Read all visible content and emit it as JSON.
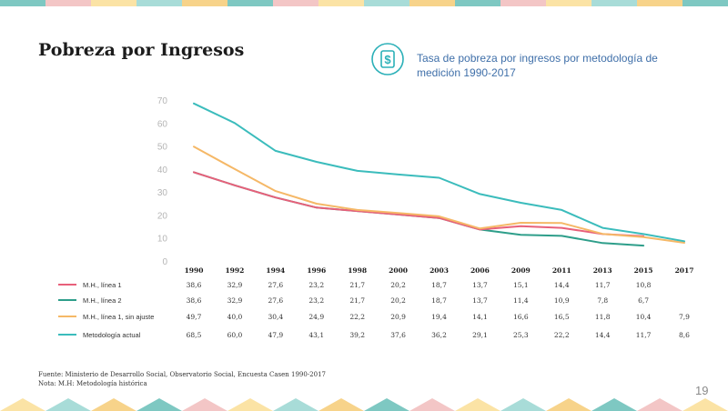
{
  "slide": {
    "title": "Pobreza por Ingresos",
    "page_number": "19",
    "source_line1": "Fuente: Ministerio de Desarrollo Social, Observatorio Social, Encuesta Casen 1990-2017",
    "source_line2": "Nota: M.H: Metodología histórica"
  },
  "colors": {
    "deco": [
      "#7ec8c2",
      "#f3c6c6",
      "#fbe3a5",
      "#a8dcd8",
      "#f7d38a"
    ],
    "icon": "#2bb0b8"
  },
  "icons": {
    "header": "dollar-icon"
  },
  "chart_data": {
    "type": "line",
    "title": "Tasa de pobreza por ingresos por metodología de medición 1990-2017",
    "ylim": [
      0,
      70
    ],
    "yticks": [
      0,
      10,
      20,
      30,
      40,
      50,
      60,
      70
    ],
    "ytick_labels": [
      "0",
      "10",
      "20",
      "30",
      "40",
      "50",
      "60",
      "70"
    ],
    "categories": [
      "1990",
      "1992",
      "1994",
      "1996",
      "1998",
      "2000",
      "2003",
      "2006",
      "2009",
      "2011",
      "2013",
      "2015",
      "2017"
    ],
    "series": [
      {
        "name": "M.H., línea 1",
        "color": "#e8607a",
        "values": [
          38.6,
          32.9,
          27.6,
          23.2,
          21.7,
          20.2,
          18.7,
          13.7,
          15.1,
          14.4,
          11.7,
          10.8,
          null
        ],
        "labels": [
          "38,6",
          "32,9",
          "27,6",
          "23,2",
          "21,7",
          "20,2",
          "18,7",
          "13,7",
          "15,1",
          "14,4",
          "11,7",
          "10,8",
          ""
        ]
      },
      {
        "name": "M.H., línea 2",
        "color": "#2e9e8a",
        "values": [
          38.6,
          32.9,
          27.6,
          23.2,
          21.7,
          20.2,
          18.7,
          13.7,
          11.4,
          10.9,
          7.8,
          6.7,
          null
        ],
        "labels": [
          "38,6",
          "32,9",
          "27,6",
          "23,2",
          "21,7",
          "20,2",
          "18,7",
          "13,7",
          "11,4",
          "10,9",
          "7,8",
          "6,7",
          ""
        ]
      },
      {
        "name": "M.H., línea 1, sin ajuste",
        "color": "#f5b867",
        "values": [
          49.7,
          40.0,
          30.4,
          24.9,
          22.2,
          20.9,
          19.4,
          14.1,
          16.6,
          16.5,
          11.8,
          10.4,
          7.9
        ],
        "labels": [
          "49,7",
          "40,0",
          "30,4",
          "24,9",
          "22,2",
          "20,9",
          "19,4",
          "14,1",
          "16,6",
          "16,5",
          "11,8",
          "10,4",
          "7,9"
        ]
      },
      {
        "name": "Metodología actual",
        "color": "#3bbcbc",
        "values": [
          68.5,
          60.0,
          47.9,
          43.1,
          39.2,
          37.6,
          36.2,
          29.1,
          25.3,
          22.2,
          14.4,
          11.7,
          8.6
        ],
        "labels": [
          "68,5",
          "60,0",
          "47,9",
          "43,1",
          "39,2",
          "37,6",
          "36,2",
          "29,1",
          "25,3",
          "22,2",
          "14,4",
          "11,7",
          "8,6"
        ]
      }
    ]
  }
}
